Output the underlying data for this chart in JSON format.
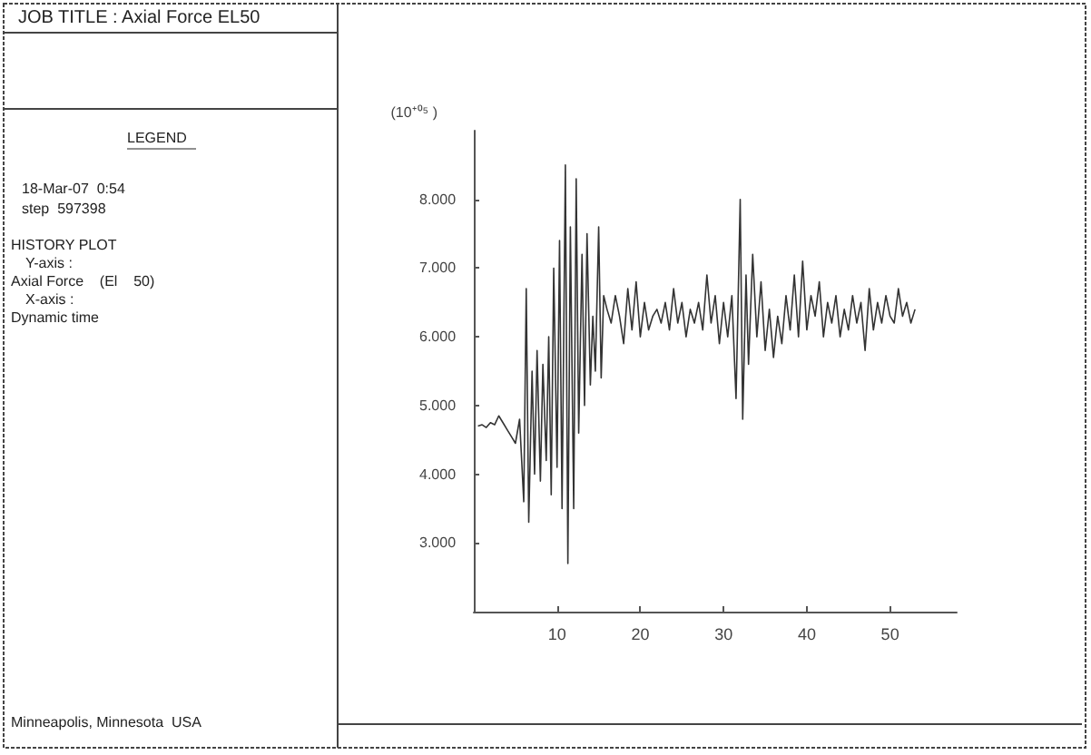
{
  "chart_data": {
    "type": "line",
    "title": "JOB TITLE : Axial Force EL50",
    "ylabel": "(10⁺⁰⁵ )",
    "annotations": [
      "LEGEND",
      "18-Mar-07  0:54",
      "step  597398",
      "HISTORY PLOT",
      "Y-axis :",
      "Axial Force    (El    50)",
      "X-axis :",
      "Dynamic time",
      "Minneapolis, Minnesota  USA"
    ],
    "x": [
      0.5,
      1,
      1.5,
      2,
      2.5,
      3,
      3.5,
      4,
      4.5,
      5,
      5.5,
      6,
      6.3,
      6.6,
      7,
      7.3,
      7.6,
      8,
      8.3,
      8.7,
      9,
      9.3,
      9.6,
      10,
      10.3,
      10.6,
      11,
      11.3,
      11.6,
      12,
      12.3,
      12.6,
      13,
      13.3,
      13.6,
      14,
      14.3,
      14.6,
      15,
      15.3,
      15.6,
      16,
      16.5,
      17,
      17.5,
      18,
      18.5,
      19,
      19.5,
      20,
      20.5,
      21,
      21.5,
      22,
      22.5,
      23,
      23.5,
      24,
      24.5,
      25,
      25.5,
      26,
      26.5,
      27,
      27.5,
      28,
      28.5,
      29,
      29.5,
      30,
      30.5,
      31,
      31.5,
      32,
      32.3,
      32.7,
      33,
      33.5,
      34,
      34.5,
      35,
      35.5,
      36,
      36.5,
      37,
      37.5,
      38,
      38.5,
      39,
      39.5,
      40,
      40.5,
      41,
      41.5,
      42,
      42.5,
      43,
      43.5,
      44,
      44.5,
      45,
      45.5,
      46,
      46.5,
      47,
      47.5,
      48,
      48.5,
      49,
      49.5,
      50,
      50.5,
      51,
      51.5,
      52,
      52.5,
      53
    ],
    "series": [
      {
        "color": "#333333",
        "values": [
          4.7,
          4.72,
          4.68,
          4.75,
          4.72,
          4.85,
          4.75,
          4.65,
          4.55,
          4.45,
          4.8,
          3.6,
          6.7,
          3.3,
          5.5,
          4.0,
          5.8,
          3.9,
          5.6,
          4.2,
          6.0,
          3.7,
          7.0,
          4.1,
          7.4,
          3.5,
          8.5,
          2.7,
          7.6,
          3.5,
          8.3,
          4.6,
          7.2,
          5.0,
          7.5,
          5.3,
          6.3,
          5.5,
          7.6,
          5.4,
          6.6,
          6.4,
          6.2,
          6.6,
          6.3,
          5.9,
          6.7,
          6.1,
          6.8,
          6.0,
          6.5,
          6.1,
          6.3,
          6.4,
          6.2,
          6.5,
          6.1,
          6.7,
          6.2,
          6.5,
          6.0,
          6.4,
          6.2,
          6.5,
          6.1,
          6.9,
          6.2,
          6.6,
          5.9,
          6.5,
          6.0,
          6.6,
          5.1,
          8.0,
          4.8,
          6.9,
          5.6,
          7.2,
          6.0,
          6.8,
          5.8,
          6.4,
          5.7,
          6.3,
          5.9,
          6.6,
          6.1,
          6.9,
          6.0,
          7.1,
          6.1,
          6.6,
          6.3,
          6.8,
          6.0,
          6.5,
          6.2,
          6.6,
          6.0,
          6.4,
          6.1,
          6.6,
          6.2,
          6.5,
          5.8,
          6.7,
          6.1,
          6.5,
          6.2,
          6.6,
          6.3,
          6.2,
          6.7,
          6.3,
          6.5,
          6.2,
          6.4
        ]
      }
    ],
    "xlim": [
      0,
      58
    ],
    "xticks": [
      10,
      20,
      30,
      40,
      50
    ],
    "ylim": [
      2,
      9
    ],
    "yticks": [
      {
        "value": 3,
        "label": "3.000"
      },
      {
        "value": 4,
        "label": "4.000"
      },
      {
        "value": 5,
        "label": "5.000"
      },
      {
        "value": 6,
        "label": "6.000"
      },
      {
        "value": 7,
        "label": "7.000"
      },
      {
        "value": 8,
        "label": "8.000"
      }
    ],
    "grid": false,
    "marker": "none",
    "line_style": "solid"
  }
}
